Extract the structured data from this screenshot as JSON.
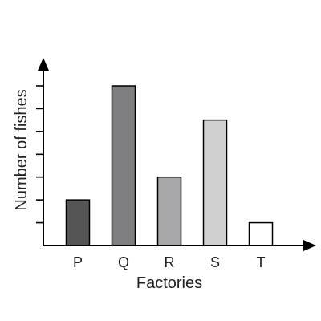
{
  "chart_data": {
    "type": "bar",
    "categories": [
      "P",
      "Q",
      "R",
      "S",
      "T"
    ],
    "values": [
      2,
      7,
      3,
      5.5,
      1
    ],
    "bar_colors": [
      "#555555",
      "#7f7f81",
      "#a8a8aa",
      "#d0d0d1",
      "#ffffff"
    ],
    "xlabel": "Factories",
    "ylabel": "Number of fishes",
    "ylim": [
      0,
      7
    ],
    "y_tick_count": 7,
    "grid": false,
    "legend": "none"
  }
}
